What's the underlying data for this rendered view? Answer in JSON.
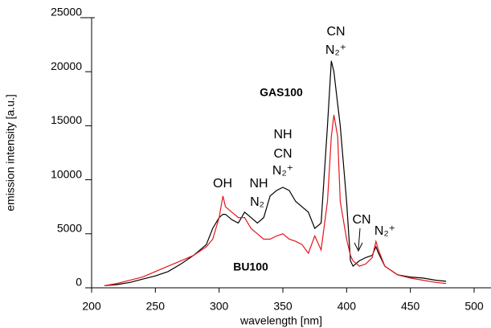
{
  "chart_data": {
    "type": "line",
    "x_label": "wavelength [nm]",
    "y_label": "emission intensity [a.u.]",
    "x": [
      210,
      220,
      230,
      240,
      250,
      260,
      270,
      280,
      290,
      295,
      300,
      303,
      305,
      310,
      315,
      320,
      325,
      330,
      335,
      340,
      345,
      350,
      355,
      360,
      365,
      370,
      375,
      380,
      385,
      388,
      390,
      393,
      395,
      400,
      403,
      405,
      410,
      415,
      420,
      423,
      425,
      430,
      440,
      450,
      460,
      470,
      478
    ],
    "series": [
      {
        "name": "GAS100",
        "color": "#000000",
        "values": [
          200,
          300,
          500,
          800,
          1100,
          1500,
          2200,
          3000,
          4000,
          5500,
          6500,
          6800,
          6800,
          6300,
          6000,
          7000,
          6500,
          6000,
          6500,
          8500,
          9000,
          9300,
          9000,
          8000,
          7500,
          7000,
          5500,
          6000,
          15000,
          21000,
          20000,
          17000,
          15000,
          8000,
          2500,
          2000,
          2500,
          2800,
          3000,
          3800,
          3200,
          2000,
          1200,
          1000,
          900,
          700,
          600
        ]
      },
      {
        "name": "BU100",
        "color": "#e8141c",
        "values": [
          200,
          400,
          700,
          1000,
          1500,
          2000,
          2500,
          3000,
          3800,
          4500,
          6500,
          8500,
          7500,
          7000,
          6500,
          6500,
          5500,
          5000,
          4500,
          4500,
          4800,
          5000,
          4500,
          4300,
          4000,
          3200,
          4800,
          3500,
          8000,
          14000,
          16000,
          14000,
          8000,
          4500,
          3000,
          2500,
          2000,
          2200,
          2800,
          4300,
          3500,
          2000,
          1200,
          900,
          700,
          500,
          400
        ]
      }
    ],
    "annotations": [
      "OH",
      "NH",
      "N₂",
      "NH",
      "CN",
      "N₂⁺",
      "CN",
      "N₂⁺",
      "CN",
      "N₂⁺"
    ],
    "xlim": [
      200,
      500
    ],
    "ylim": [
      0,
      25000
    ],
    "xticks": [
      200,
      250,
      300,
      350,
      400,
      450,
      500
    ],
    "yticks": [
      0,
      5000,
      10000,
      15000,
      20000,
      25000
    ]
  }
}
